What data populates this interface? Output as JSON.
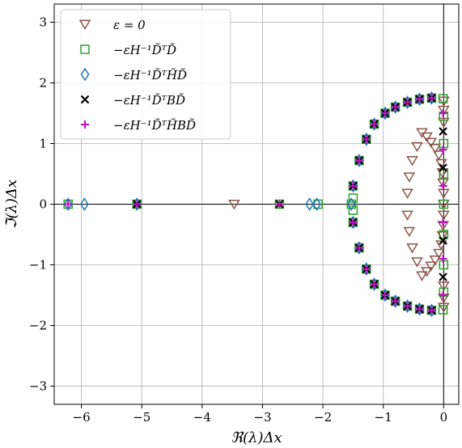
{
  "chart_data": {
    "type": "scatter",
    "xlabel": "ℜ(λ)Δx",
    "ylabel": "ℑ(λ)Δx",
    "xlim": [
      -6.45,
      0.25
    ],
    "ylim": [
      -3.3,
      3.3
    ],
    "xticks": [
      -6,
      -5,
      -4,
      -3,
      -2,
      -1,
      0
    ],
    "xtick_labels": [
      "−6",
      "−5",
      "−4",
      "−3",
      "−2",
      "−1",
      "0"
    ],
    "yticks": [
      -3,
      -2,
      -1,
      0,
      1,
      2,
      3
    ],
    "ytick_labels": [
      "−3",
      "−2",
      "−1",
      "0",
      "1",
      "2",
      "3"
    ],
    "grid": true,
    "legend_position": "top-left",
    "series": [
      {
        "name": "ε = 0",
        "marker": "triangle-down",
        "color": "#8c564b",
        "points": [
          [
            0.0,
            0.0
          ],
          [
            -0.0,
            0.18
          ],
          [
            -0.01,
            0.35
          ],
          [
            -0.02,
            0.52
          ],
          [
            -0.04,
            0.67
          ],
          [
            -0.08,
            0.81
          ],
          [
            -0.14,
            0.92
          ],
          [
            -0.21,
            1.02
          ],
          [
            -0.28,
            1.11
          ],
          [
            -0.36,
            1.18
          ],
          [
            -0.44,
            0.95
          ],
          [
            -0.52,
            0.72
          ],
          [
            -0.57,
            0.45
          ],
          [
            -0.6,
            0.18
          ],
          [
            -0.6,
            -0.18
          ],
          [
            -0.57,
            -0.45
          ],
          [
            -0.52,
            -0.72
          ],
          [
            -0.44,
            -0.95
          ],
          [
            -0.36,
            -1.18
          ],
          [
            -0.28,
            -1.11
          ],
          [
            -0.21,
            -1.02
          ],
          [
            -0.14,
            -0.92
          ],
          [
            -0.08,
            -0.81
          ],
          [
            -0.04,
            -0.67
          ],
          [
            -0.02,
            -0.52
          ],
          [
            -0.01,
            -0.35
          ],
          [
            -0.0,
            -0.18
          ],
          [
            -0.0,
            1.35
          ],
          [
            -0.0,
            1.55
          ],
          [
            -0.0,
            1.7
          ],
          [
            -0.0,
            -1.35
          ],
          [
            -0.0,
            -1.55
          ],
          [
            -0.0,
            -1.7
          ],
          [
            -3.47,
            0.0
          ]
        ]
      },
      {
        "name": "−εH⁻¹D̃ᵀD̃",
        "marker": "square",
        "color": "#2ca02c",
        "points": [
          [
            -6.22,
            0.0
          ],
          [
            -5.08,
            0.0
          ],
          [
            -2.72,
            0.0
          ],
          [
            -2.08,
            0.0
          ],
          [
            -1.53,
            0.0
          ],
          [
            -1.5,
            0.3
          ],
          [
            -1.5,
            0.1
          ],
          [
            -1.5,
            -0.1
          ],
          [
            -1.5,
            -0.3
          ],
          [
            -1.4,
            0.72
          ],
          [
            -1.4,
            -0.72
          ],
          [
            -1.28,
            1.07
          ],
          [
            -1.28,
            -1.07
          ],
          [
            -1.15,
            1.32
          ],
          [
            -1.15,
            -1.32
          ],
          [
            -0.97,
            1.5
          ],
          [
            -0.97,
            -1.5
          ],
          [
            -0.8,
            1.6
          ],
          [
            -0.8,
            -1.6
          ],
          [
            -0.6,
            1.68
          ],
          [
            -0.6,
            -1.68
          ],
          [
            -0.4,
            1.73
          ],
          [
            -0.4,
            -1.73
          ],
          [
            -0.2,
            1.75
          ],
          [
            -0.2,
            -1.75
          ],
          [
            -0.01,
            1.74
          ],
          [
            -0.01,
            -1.74
          ],
          [
            -0.0,
            1.45
          ],
          [
            -0.0,
            1.0
          ],
          [
            -0.0,
            0.5
          ],
          [
            -0.0,
            0.0
          ],
          [
            -0.0,
            -0.5
          ],
          [
            -0.0,
            -1.0
          ],
          [
            -0.0,
            -1.45
          ]
        ]
      },
      {
        "name": "−εH⁻¹D̃ᵀH̃D̃",
        "marker": "diamond",
        "color": "#1f77b4",
        "points": [
          [
            -6.22,
            0.0
          ],
          [
            -5.95,
            0.0
          ],
          [
            -5.08,
            0.0
          ],
          [
            -2.22,
            0.0
          ],
          [
            -2.1,
            0.0
          ],
          [
            -1.53,
            0.0
          ],
          [
            -1.5,
            0.3
          ],
          [
            -1.5,
            -0.3
          ],
          [
            -1.4,
            0.72
          ],
          [
            -1.4,
            -0.72
          ],
          [
            -1.28,
            1.07
          ],
          [
            -1.28,
            -1.07
          ],
          [
            -1.15,
            1.32
          ],
          [
            -1.15,
            -1.32
          ],
          [
            -0.97,
            1.5
          ],
          [
            -0.97,
            -1.5
          ],
          [
            -0.8,
            1.6
          ],
          [
            -0.8,
            -1.6
          ],
          [
            -0.6,
            1.68
          ],
          [
            -0.6,
            -1.68
          ],
          [
            -0.4,
            1.73
          ],
          [
            -0.4,
            -1.73
          ],
          [
            -0.2,
            1.75
          ],
          [
            -0.2,
            -1.75
          ]
        ]
      },
      {
        "name": "−εH⁻¹D̃ᵀBD̃",
        "marker": "x",
        "color": "#000000",
        "points": [
          [
            -5.08,
            0.0
          ],
          [
            -2.72,
            0.0
          ],
          [
            -1.5,
            0.3
          ],
          [
            -1.5,
            -0.3
          ],
          [
            -1.4,
            0.72
          ],
          [
            -1.4,
            -0.72
          ],
          [
            -1.28,
            1.07
          ],
          [
            -1.28,
            -1.07
          ],
          [
            -1.15,
            1.32
          ],
          [
            -1.15,
            -1.32
          ],
          [
            -0.97,
            1.5
          ],
          [
            -0.97,
            -1.5
          ],
          [
            -0.8,
            1.6
          ],
          [
            -0.8,
            -1.6
          ],
          [
            -0.6,
            1.68
          ],
          [
            -0.6,
            -1.68
          ],
          [
            -0.4,
            1.73
          ],
          [
            -0.4,
            -1.73
          ],
          [
            -0.2,
            1.75
          ],
          [
            -0.2,
            -1.75
          ],
          [
            -0.01,
            1.2
          ],
          [
            -0.01,
            -1.2
          ],
          [
            -0.01,
            0.6
          ],
          [
            -0.01,
            -0.6
          ]
        ]
      },
      {
        "name": "−εH⁻¹D̃ᵀH̃BD̃",
        "marker": "plus",
        "color": "#c20fc2",
        "points": [
          [
            -6.22,
            0.0
          ],
          [
            -5.08,
            0.0
          ],
          [
            -2.72,
            0.0
          ],
          [
            -1.5,
            0.3
          ],
          [
            -1.5,
            -0.3
          ],
          [
            -1.4,
            0.72
          ],
          [
            -1.4,
            -0.72
          ],
          [
            -1.28,
            1.07
          ],
          [
            -1.28,
            -1.07
          ],
          [
            -1.15,
            1.32
          ],
          [
            -1.15,
            -1.32
          ],
          [
            -0.97,
            1.5
          ],
          [
            -0.97,
            -1.5
          ],
          [
            -0.8,
            1.6
          ],
          [
            -0.8,
            -1.6
          ],
          [
            -0.6,
            1.68
          ],
          [
            -0.6,
            -1.68
          ],
          [
            -0.4,
            1.73
          ],
          [
            -0.4,
            -1.73
          ],
          [
            -0.2,
            1.75
          ],
          [
            -0.2,
            -1.75
          ],
          [
            -0.01,
            0.3
          ],
          [
            -0.01,
            -0.3
          ],
          [
            -0.01,
            0.9
          ],
          [
            -0.01,
            -0.9
          ],
          [
            -0.01,
            1.5
          ],
          [
            -0.01,
            -1.5
          ]
        ]
      }
    ]
  }
}
